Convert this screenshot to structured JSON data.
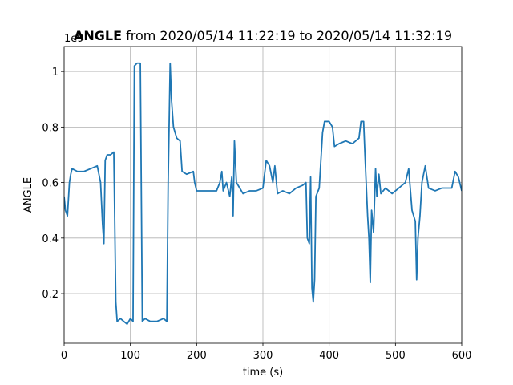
{
  "chart_data": {
    "type": "line",
    "title_bold": "ANGLE",
    "title": "from 2020/05/14 11:22:19 to 2020/05/14 11:32:19",
    "y_offset_text": "1e9",
    "xlabel": "time (s)",
    "ylabel": "ANGLE",
    "color": "#1f77b4",
    "grid": true,
    "xlim": [
      0,
      600
    ],
    "ylim": [
      0.021,
      1.09
    ],
    "xticks": [
      0,
      100,
      200,
      300,
      400,
      500,
      600
    ],
    "yticks": [
      0.2,
      0.4,
      0.6,
      0.8,
      1.0
    ],
    "x": [
      0,
      2,
      5,
      8,
      10,
      12,
      20,
      30,
      40,
      50,
      55,
      58,
      60,
      62,
      65,
      70,
      75,
      78,
      80,
      85,
      90,
      95,
      100,
      104,
      106,
      110,
      115,
      118,
      122,
      130,
      140,
      150,
      155,
      157,
      160,
      162,
      165,
      170,
      175,
      178,
      185,
      195,
      197,
      200,
      210,
      220,
      230,
      235,
      238,
      240,
      245,
      250,
      253,
      255,
      257,
      260,
      265,
      270,
      280,
      290,
      300,
      305,
      310,
      315,
      318,
      322,
      330,
      340,
      350,
      360,
      365,
      367,
      370,
      372,
      374,
      376,
      378,
      380,
      385,
      390,
      393,
      400,
      405,
      408,
      415,
      425,
      435,
      445,
      448,
      452,
      454,
      458,
      460,
      462,
      464,
      467,
      470,
      472,
      475,
      478,
      485,
      495,
      505,
      515,
      520,
      525,
      530,
      532,
      534,
      537,
      540,
      545,
      550,
      560,
      570,
      585,
      590,
      595,
      600
    ],
    "values": [
      0.55,
      0.5,
      0.48,
      0.6,
      0.63,
      0.65,
      0.64,
      0.64,
      0.65,
      0.66,
      0.6,
      0.45,
      0.38,
      0.68,
      0.7,
      0.7,
      0.71,
      0.17,
      0.1,
      0.11,
      0.1,
      0.09,
      0.11,
      0.1,
      1.02,
      1.03,
      1.03,
      0.1,
      0.11,
      0.1,
      0.1,
      0.11,
      0.1,
      0.6,
      1.03,
      0.9,
      0.8,
      0.76,
      0.75,
      0.64,
      0.63,
      0.64,
      0.6,
      0.57,
      0.57,
      0.57,
      0.57,
      0.6,
      0.64,
      0.57,
      0.6,
      0.55,
      0.62,
      0.48,
      0.75,
      0.6,
      0.58,
      0.56,
      0.57,
      0.57,
      0.58,
      0.68,
      0.66,
      0.6,
      0.66,
      0.56,
      0.57,
      0.56,
      0.58,
      0.59,
      0.6,
      0.4,
      0.38,
      0.62,
      0.22,
      0.17,
      0.25,
      0.55,
      0.58,
      0.78,
      0.82,
      0.82,
      0.8,
      0.73,
      0.74,
      0.75,
      0.74,
      0.76,
      0.82,
      0.82,
      0.7,
      0.48,
      0.4,
      0.24,
      0.5,
      0.42,
      0.65,
      0.55,
      0.63,
      0.56,
      0.58,
      0.56,
      0.58,
      0.6,
      0.65,
      0.5,
      0.46,
      0.25,
      0.4,
      0.48,
      0.6,
      0.66,
      0.58,
      0.57,
      0.58,
      0.58,
      0.64,
      0.62,
      0.57
    ]
  }
}
